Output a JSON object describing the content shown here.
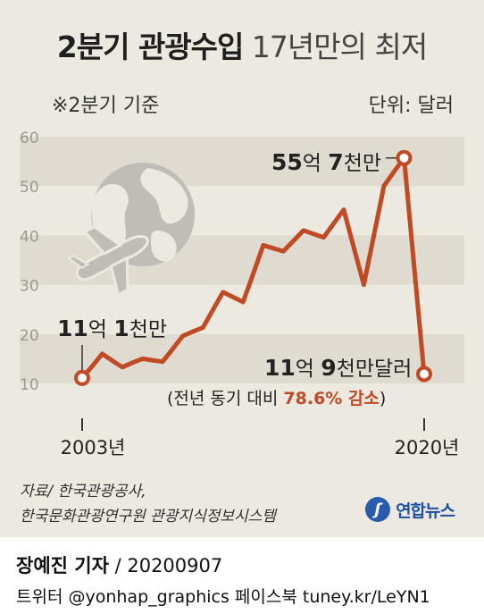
{
  "header": {
    "title_bold": "2분기 관광수입",
    "title_light": "17년만의 최저",
    "note_left": "※2분기 기준",
    "note_right": "단위: 달러"
  },
  "chart_data": {
    "type": "line",
    "unit": "억 달러",
    "ylim": [
      10,
      60
    ],
    "yticks": [
      10,
      20,
      30,
      40,
      50,
      60
    ],
    "x_start_label": "2003년",
    "x_end_label": "2020년",
    "x_range": [
      2003,
      2020.25
    ],
    "x": [
      2003,
      2003.5,
      2004,
      2004.5,
      2005,
      2005.5,
      2006,
      2006.5,
      2007,
      2007.5,
      2008,
      2008.5,
      2009,
      2009.5,
      2010,
      2010.5,
      2011,
      2011.5,
      2012,
      2012.5,
      2013,
      2013.5,
      2014,
      2014.5,
      2015,
      2015.5,
      2016,
      2016.5,
      2017,
      2017.5,
      2018,
      2018.5,
      2019,
      2019.5,
      2020
    ],
    "y": [
      11.1,
      13.5,
      16,
      14.6,
      13.3,
      14.2,
      15,
      14.7,
      14.4,
      17,
      19.6,
      20.5,
      21.3,
      24.9,
      28.5,
      27.5,
      26.5,
      32.2,
      38,
      37.4,
      36.8,
      38.9,
      41,
      40.3,
      39.6,
      42.4,
      45.2,
      37.6,
      30,
      40,
      50,
      52.9,
      55.7,
      33.8,
      11.9
    ],
    "series": [
      {
        "color": "#bf4a24"
      }
    ],
    "annotations": {
      "first": {
        "num": "11",
        "unit1": "억 ",
        "num2": "1",
        "unit2": "천만"
      },
      "peak": {
        "num": "55",
        "unit1": "억 ",
        "num2": "7",
        "unit2": "천만"
      },
      "last": {
        "num": "11",
        "unit1": "억 ",
        "num2": "9",
        "unit2": "천만달러"
      },
      "change_prefix": "(전년 동기 대비 ",
      "change_value": "78.6% 감소",
      "change_suffix": ")"
    }
  },
  "source": {
    "line1": "자료/ 한국관광공사,",
    "line2": "한국문화관광연구원 관광지식정보시스템"
  },
  "logo": {
    "text": "연합뉴스"
  },
  "footer": {
    "reporter": "장예진 기자",
    "date": " / 20200907",
    "social": "트위터 @yonhap_graphics  페이스북 tuney.kr/LeYN1"
  },
  "colors": {
    "line": "#bf4a24",
    "band": "#dfdbd0",
    "panel": "#ece9e0"
  },
  "icons": [
    "globe-with-airplane-icon",
    "yonhap-logo-icon"
  ]
}
